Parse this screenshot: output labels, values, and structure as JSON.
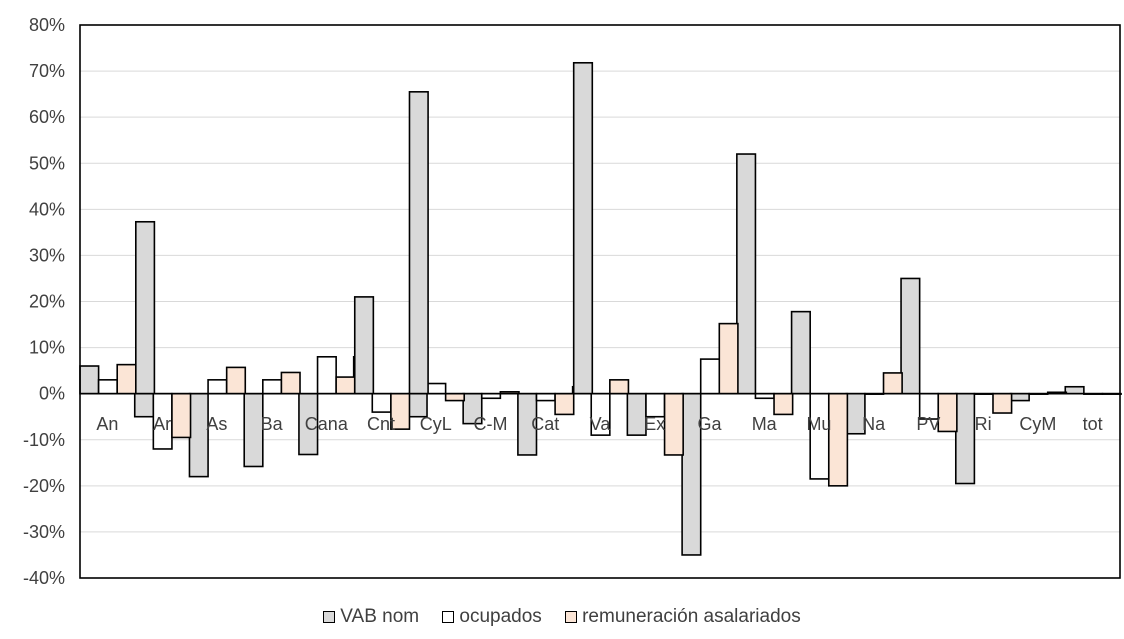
{
  "chart_data": {
    "type": "bar",
    "categories": [
      "An",
      "Ar",
      "As",
      "Ba",
      "Cana",
      "Cnt",
      "CyL",
      "C-M",
      "Cat",
      "Va",
      "Ex",
      "Ga",
      "Ma",
      "Mu",
      "Na",
      "PV",
      "Ri",
      "CyM",
      "tot"
    ],
    "series": [
      {
        "name": "VAB nom",
        "color": "#d9d9d9",
        "values": [
          6,
          -5,
          -18,
          -15.8,
          -13.2,
          8,
          -5,
          -6.5,
          -13.3,
          1.5,
          -9,
          -35,
          52,
          17.8,
          -8.7,
          25,
          -19.5,
          -1.5,
          1.5
        ]
      },
      {
        "name": "ocupados",
        "color": "#ffffff",
        "values": [
          3,
          -12,
          3,
          3,
          8,
          -4,
          2.2,
          -1,
          -1.5,
          -9,
          -5,
          7.5,
          -1,
          -18.5,
          0,
          -5.5,
          0,
          0,
          0
        ]
      },
      {
        "name": "remuneración asalariados",
        "color": "#fbe5d6",
        "values": [
          6.3,
          -9.5,
          5.7,
          4.6,
          3.6,
          -7.7,
          -1.5,
          0.4,
          -4.5,
          3,
          -13.3,
          15.2,
          -4.5,
          -20,
          4.5,
          -8.2,
          -4.2,
          0.3,
          0
        ]
      },
      {
        "name": "",
        "color": "#d9d9d9",
        "values": [
          37.3,
          null,
          null,
          null,
          21,
          65.5,
          null,
          null,
          71.8,
          null,
          null,
          null,
          null,
          null,
          null,
          null,
          null,
          null,
          null
        ]
      }
    ],
    "yticks": [
      "80%",
      "70%",
      "60%",
      "50%",
      "40%",
      "30%",
      "20%",
      "10%",
      "0%",
      "-10%",
      "-20%",
      "-30%",
      "-40%"
    ],
    "ylim": [
      -40,
      80
    ],
    "ylabel": "",
    "xlabel": "",
    "grid": true,
    "legend_position": "bottom"
  }
}
